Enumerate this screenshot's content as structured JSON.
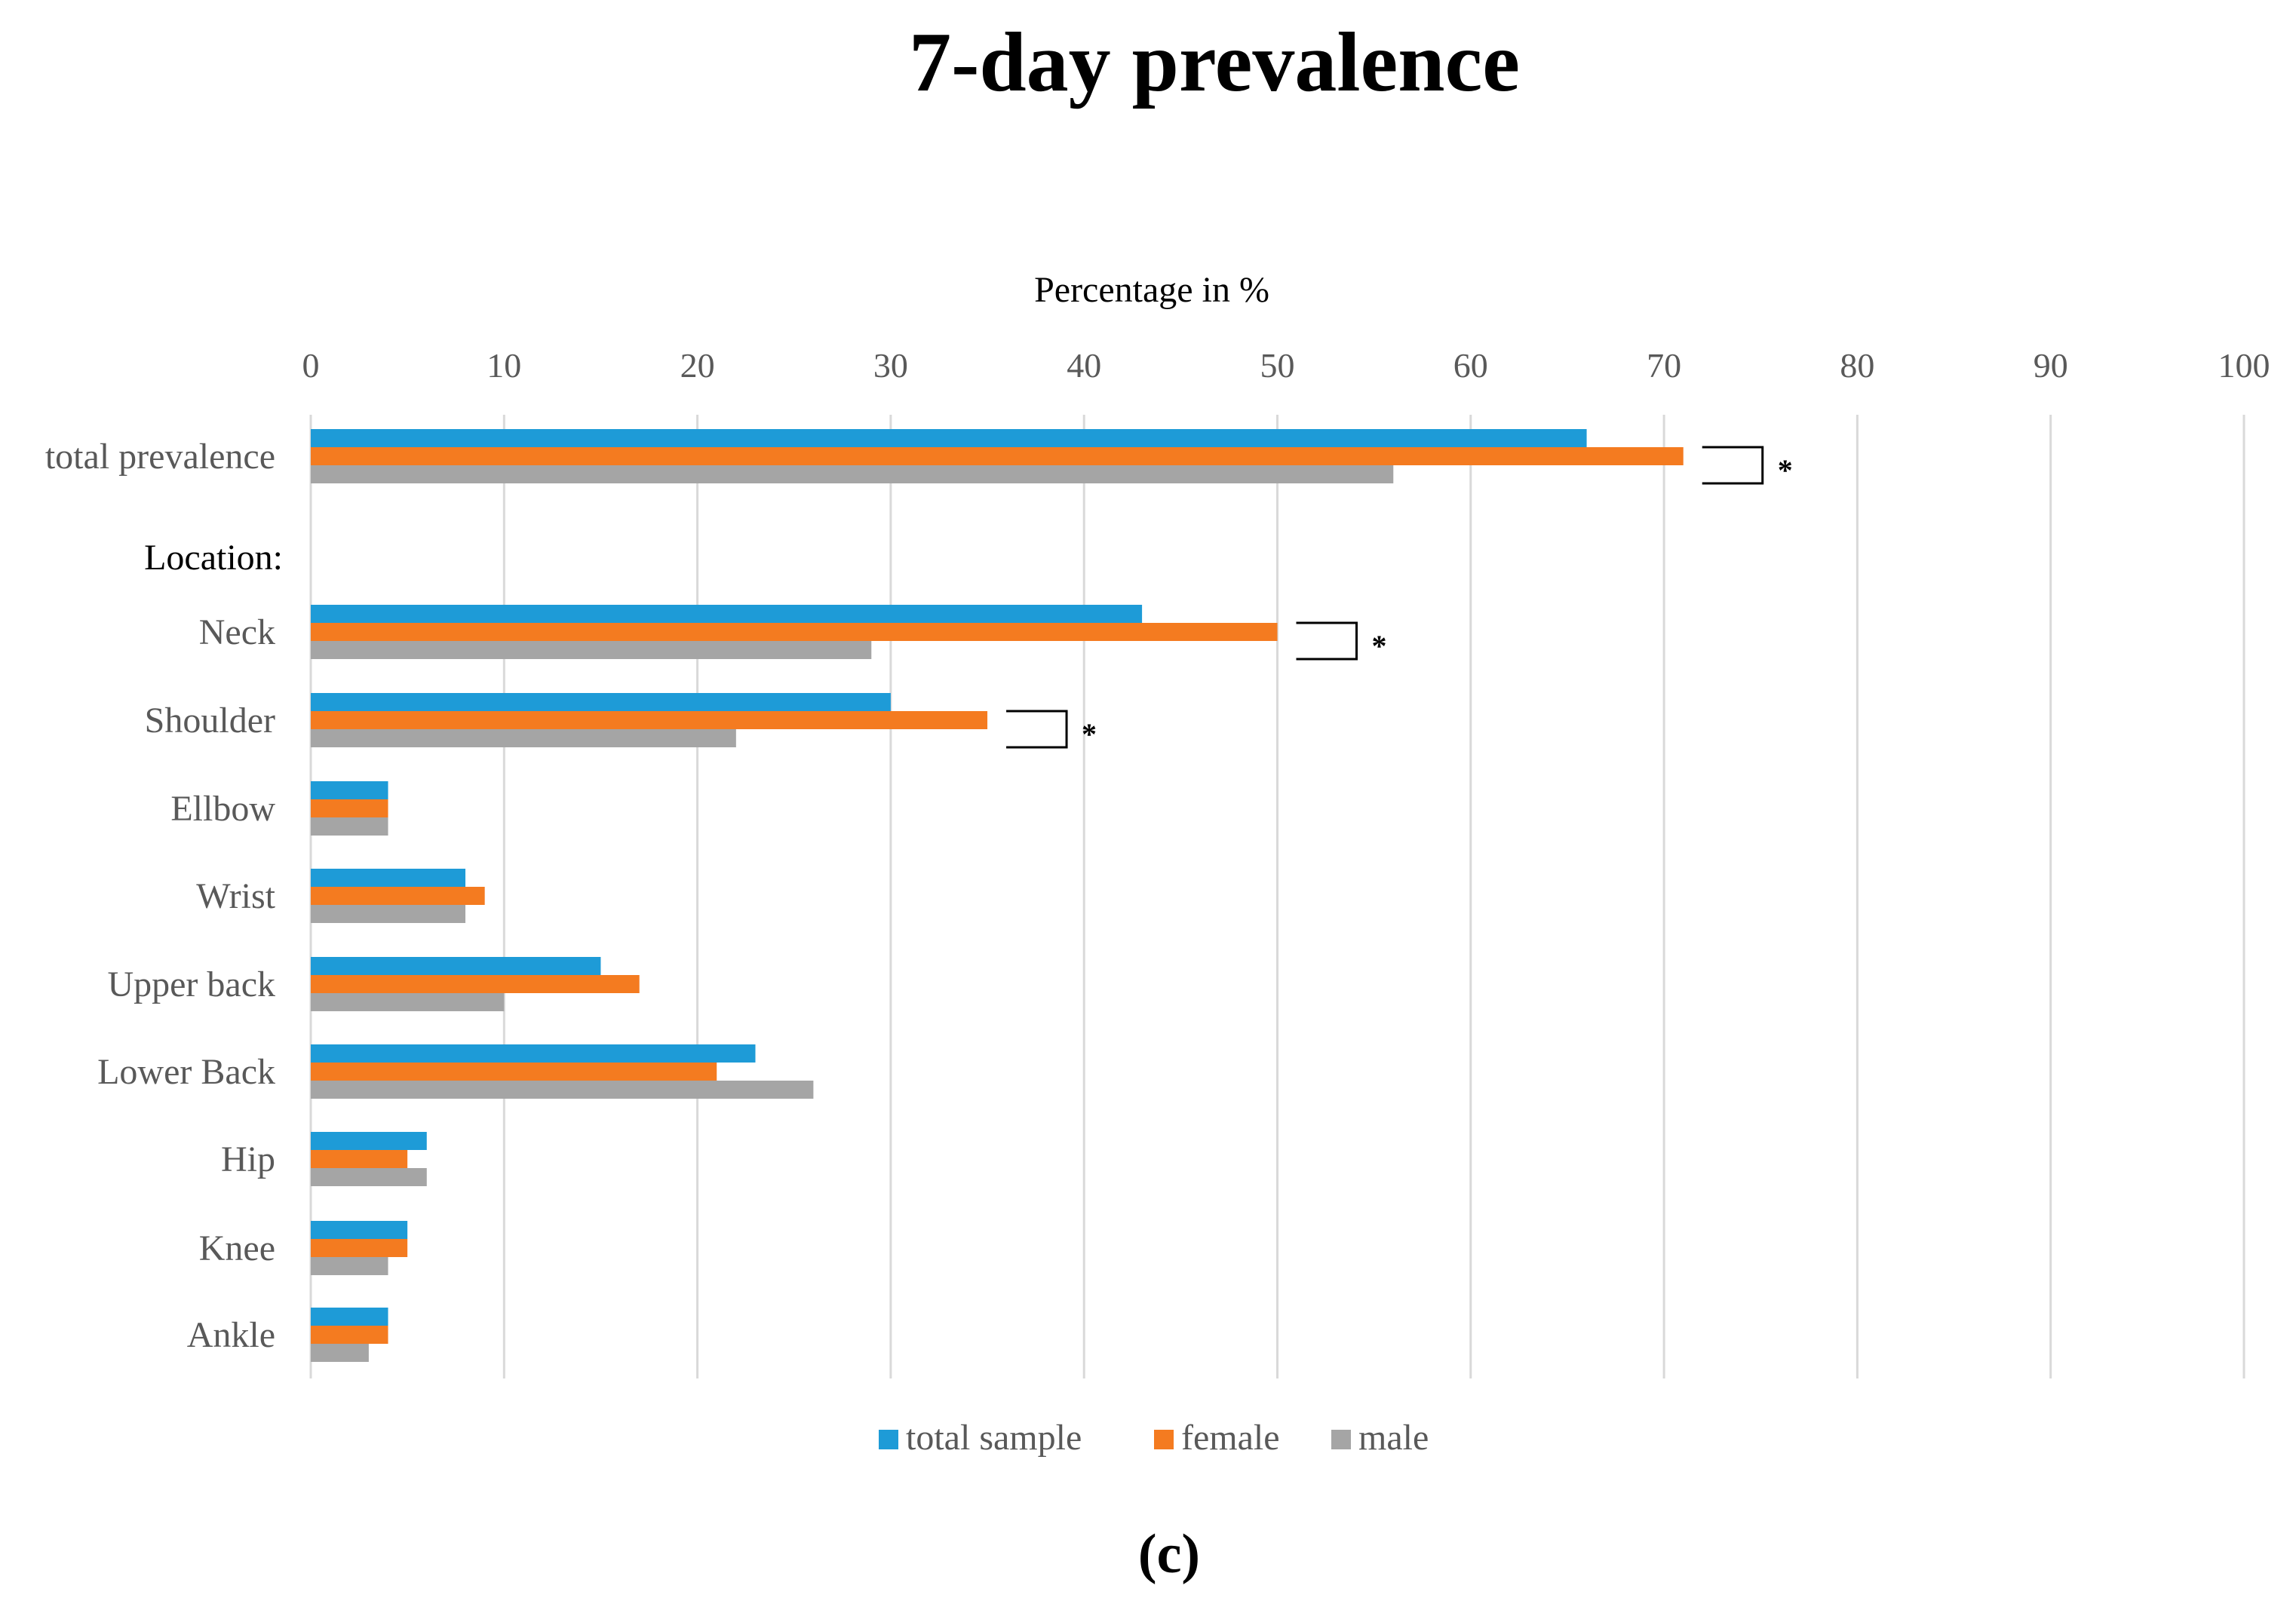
{
  "chart_data": {
    "type": "bar",
    "orientation": "horizontal",
    "title": "7-day prevalence",
    "xlabel": "Percentage in %",
    "ylabel": "",
    "xlim": [
      0,
      100
    ],
    "xticks": [
      0,
      10,
      20,
      30,
      40,
      50,
      60,
      70,
      80,
      90,
      100
    ],
    "grid": true,
    "legend_position": "bottom",
    "section_label": "Location:",
    "categories": [
      "total prevalence",
      "Neck",
      "Shoulder",
      "Ellbow",
      "Wrist",
      "Upper back",
      "Lower Back",
      "Hip",
      "Knee",
      "Ankle"
    ],
    "series": [
      {
        "name": "total sample",
        "color": "#1E9BD7",
        "values": [
          66,
          43,
          30,
          4,
          8,
          15,
          23,
          6,
          5,
          4
        ]
      },
      {
        "name": "female",
        "color": "#F47B20",
        "values": [
          71,
          50,
          35,
          4,
          9,
          17,
          21,
          5,
          5,
          4
        ]
      },
      {
        "name": "male",
        "color": "#A5A5A5",
        "values": [
          56,
          29,
          22,
          4,
          8,
          10,
          26,
          6,
          4,
          3
        ]
      }
    ],
    "significance": [
      {
        "category": "total prevalence",
        "marker": "*"
      },
      {
        "category": "Neck",
        "marker": "*"
      },
      {
        "category": "Shoulder",
        "marker": "*"
      }
    ]
  },
  "panel_label": "(c)"
}
